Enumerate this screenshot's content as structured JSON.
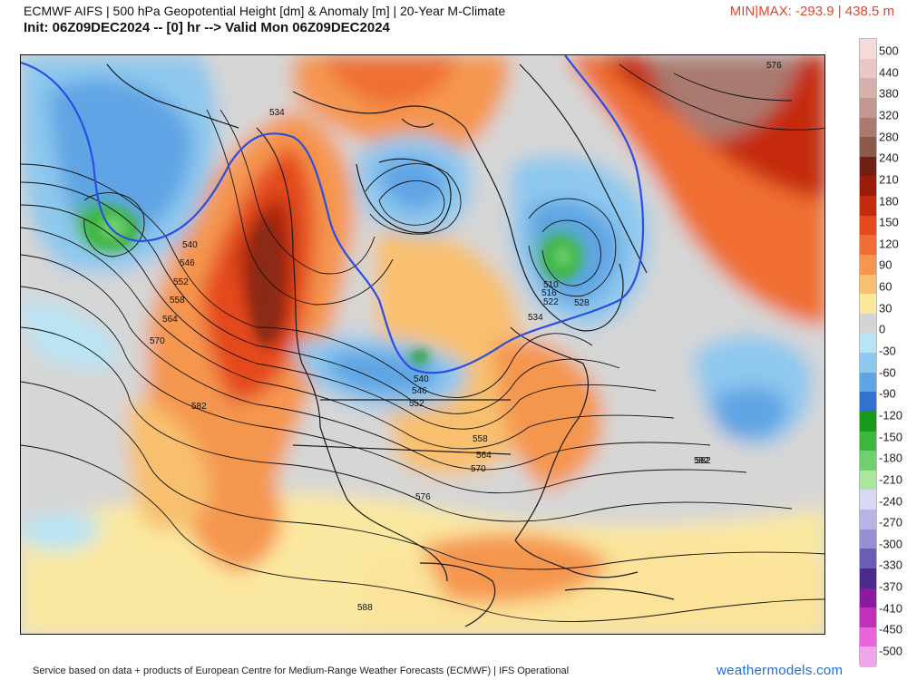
{
  "header": {
    "title": "ECMWF AIFS | 500 hPa Geopotential Height [dm] & Anomaly [m] | 20-Year M-Climate",
    "subtitle": "Init: 06Z09DEC2024 -- [0] hr --> Valid Mon 06Z09DEC2024",
    "minmax": "MIN|MAX: -293.9 | 438.5 m"
  },
  "colors": {
    "minmax_text": "#e2452d",
    "brand_text": "#1d6ed8",
    "contour_line": "#111111",
    "highlight_contour": "#2a4fe0",
    "land_outline": "#1a1a1a"
  },
  "colorbar": {
    "labels": [
      "500",
      "440",
      "380",
      "320",
      "280",
      "240",
      "210",
      "180",
      "150",
      "120",
      "90",
      "60",
      "30",
      "0",
      "-30",
      "-60",
      "-90",
      "-120",
      "-150",
      "-180",
      "-210",
      "-240",
      "-270",
      "-300",
      "-330",
      "-370",
      "-410",
      "-450",
      "-500"
    ],
    "colors": [
      "#f6dada",
      "#e9c7c7",
      "#d7b0ab",
      "#c29790",
      "#a97a70",
      "#8c5a4a",
      "#701f12",
      "#9c1c0c",
      "#c52a0f",
      "#e44a1b",
      "#f06e33",
      "#f5964f",
      "#f8c06e",
      "#fbe79c",
      "#d4d4d4",
      "#b9e4f4",
      "#8ec8ee",
      "#5fa4e4",
      "#2f72d0",
      "#1a9a1a",
      "#3cb63c",
      "#70d070",
      "#a9e6a0",
      "#d8d8f4",
      "#b8b4e6",
      "#9490d2",
      "#6a5db6",
      "#4b2a8c",
      "#8a1aa0",
      "#c22fb8",
      "#e864d8",
      "#f2a6ea"
    ]
  },
  "contour_labels": [
    "534",
    "540",
    "546",
    "552",
    "558",
    "564",
    "570",
    "576",
    "582",
    "588",
    "510",
    "516",
    "522",
    "528"
  ],
  "map_labels": [
    {
      "text": "534"
    },
    {
      "text": "540"
    },
    {
      "text": "546"
    },
    {
      "text": "552"
    },
    {
      "text": "558"
    },
    {
      "text": "564"
    },
    {
      "text": "570"
    },
    {
      "text": "582"
    },
    {
      "text": "510"
    },
    {
      "text": "516"
    },
    {
      "text": "522"
    },
    {
      "text": "528"
    },
    {
      "text": "534"
    },
    {
      "text": "540"
    },
    {
      "text": "546"
    },
    {
      "text": "552"
    },
    {
      "text": "558"
    },
    {
      "text": "564"
    },
    {
      "text": "570"
    },
    {
      "text": "576"
    },
    {
      "text": "582"
    },
    {
      "text": "588"
    },
    {
      "text": "576"
    },
    {
      "text": "582"
    }
  ],
  "footer": {
    "credit": "Service based on data + products of European Centre for Medium-Range Weather Forecasts (ECMWF) | IFS Operational",
    "brand": "weathermodels.com"
  }
}
